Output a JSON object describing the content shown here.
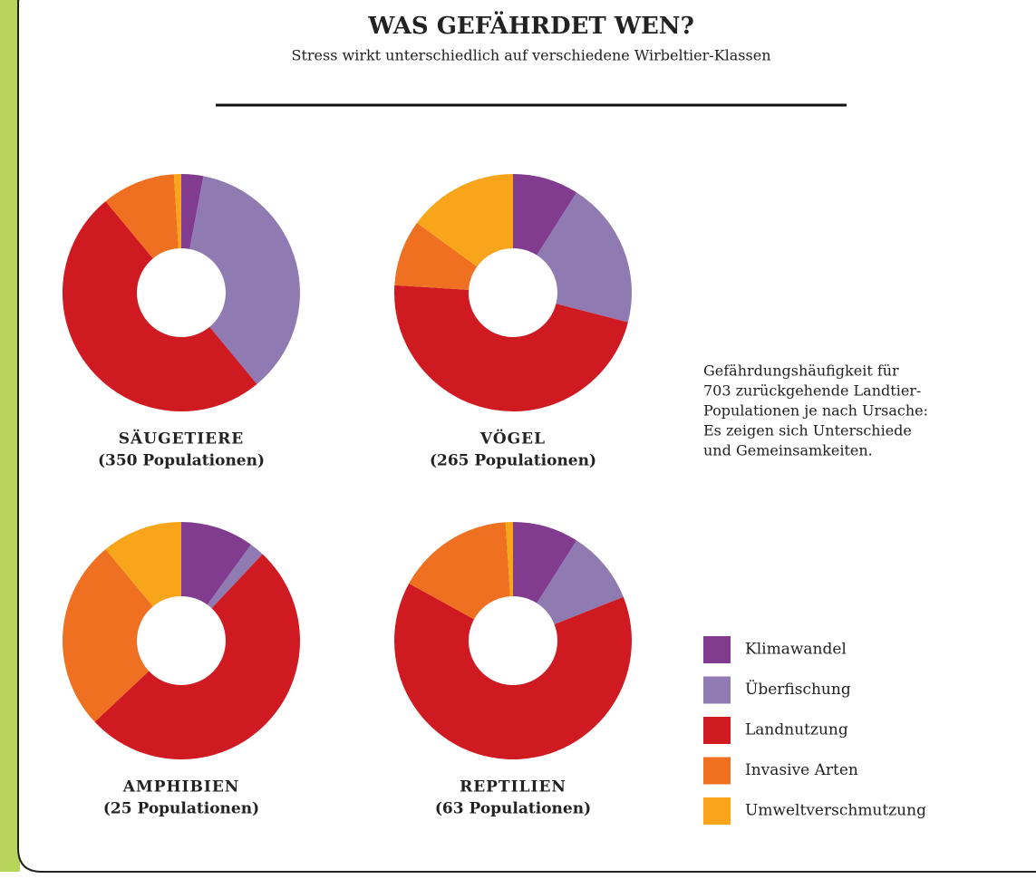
{
  "title": "WAS GEFÄHRDET WEN?",
  "subtitle": "Stress wirkt unterschiedlich auf verschiedene Wirbeltier-Klassen",
  "note": [
    "Gefährdungshäufigkeit für",
    "703 zurückgehende Landtier-",
    "Populationen je nach Ursache:",
    "Es zeigen sich Unterschiede",
    "und Gemeinsamkeiten."
  ],
  "legend": {
    "categories": [
      "Klimawandel",
      "Überfischung",
      "Landnutzung",
      "Invasive Arten",
      "Umweltverschmutzung"
    ],
    "colors": [
      "#823c8f",
      "#8f7bb1",
      "#cf1a22",
      "#f07022",
      "#f8a51b"
    ]
  },
  "chart_data": [
    {
      "type": "donut",
      "title": "SÄUGETIERE",
      "subtitle": "(350 Populationen)",
      "values": [
        3,
        36,
        50,
        10,
        1
      ]
    },
    {
      "type": "donut",
      "title": "VÖGEL",
      "subtitle": "(265 Populationen)",
      "values": [
        9,
        20,
        47,
        9,
        15
      ]
    },
    {
      "type": "donut",
      "title": "AMPHIBIEN",
      "subtitle": "(25 Populationen)",
      "values": [
        10,
        2,
        51,
        26,
        11
      ]
    },
    {
      "type": "donut",
      "title": "REPTILIEN",
      "subtitle": "(63 Populationen)",
      "values": [
        9,
        10,
        64,
        16,
        1
      ]
    }
  ]
}
